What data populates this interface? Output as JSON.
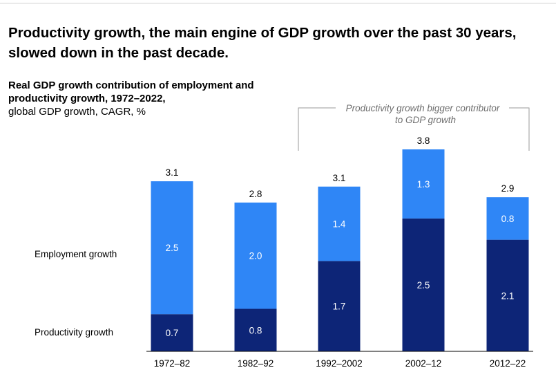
{
  "headline": "Productivity growth, the main engine of GDP growth over the past 30 years, slowed down in the past decade.",
  "subtitle_bold": "Real GDP growth contribution of employment and productivity growth, 1972–2022,",
  "subtitle_unit": "global GDP growth, CAGR, %",
  "legend_employment": "Employment growth",
  "legend_productivity": "Productivity growth",
  "callout_line1": "Productivity growth bigger contributor",
  "callout_line2": "to GDP growth",
  "colors": {
    "employment": "#2f86f6",
    "productivity": "#0d2577"
  },
  "chart_data": {
    "type": "bar",
    "stacked": true,
    "categories": [
      "1972–82",
      "1982–92",
      "1992–2002",
      "2002–12",
      "2012–22"
    ],
    "series": [
      {
        "name": "Productivity growth",
        "values": [
          0.7,
          0.8,
          1.7,
          2.5,
          2.1
        ]
      },
      {
        "name": "Employment growth",
        "values": [
          2.5,
          2.0,
          1.4,
          1.3,
          0.8
        ]
      }
    ],
    "totals": [
      "3.1",
      "2.8",
      "3.1",
      "3.8",
      "2.9"
    ],
    "labels": {
      "productivity": [
        "0.7",
        "0.8",
        "1.7",
        "2.5",
        "2.1"
      ],
      "employment": [
        "2.5",
        "2.0",
        "1.4",
        "1.3",
        "0.8"
      ]
    },
    "ylim": [
      0,
      3.8
    ],
    "grid": false
  }
}
